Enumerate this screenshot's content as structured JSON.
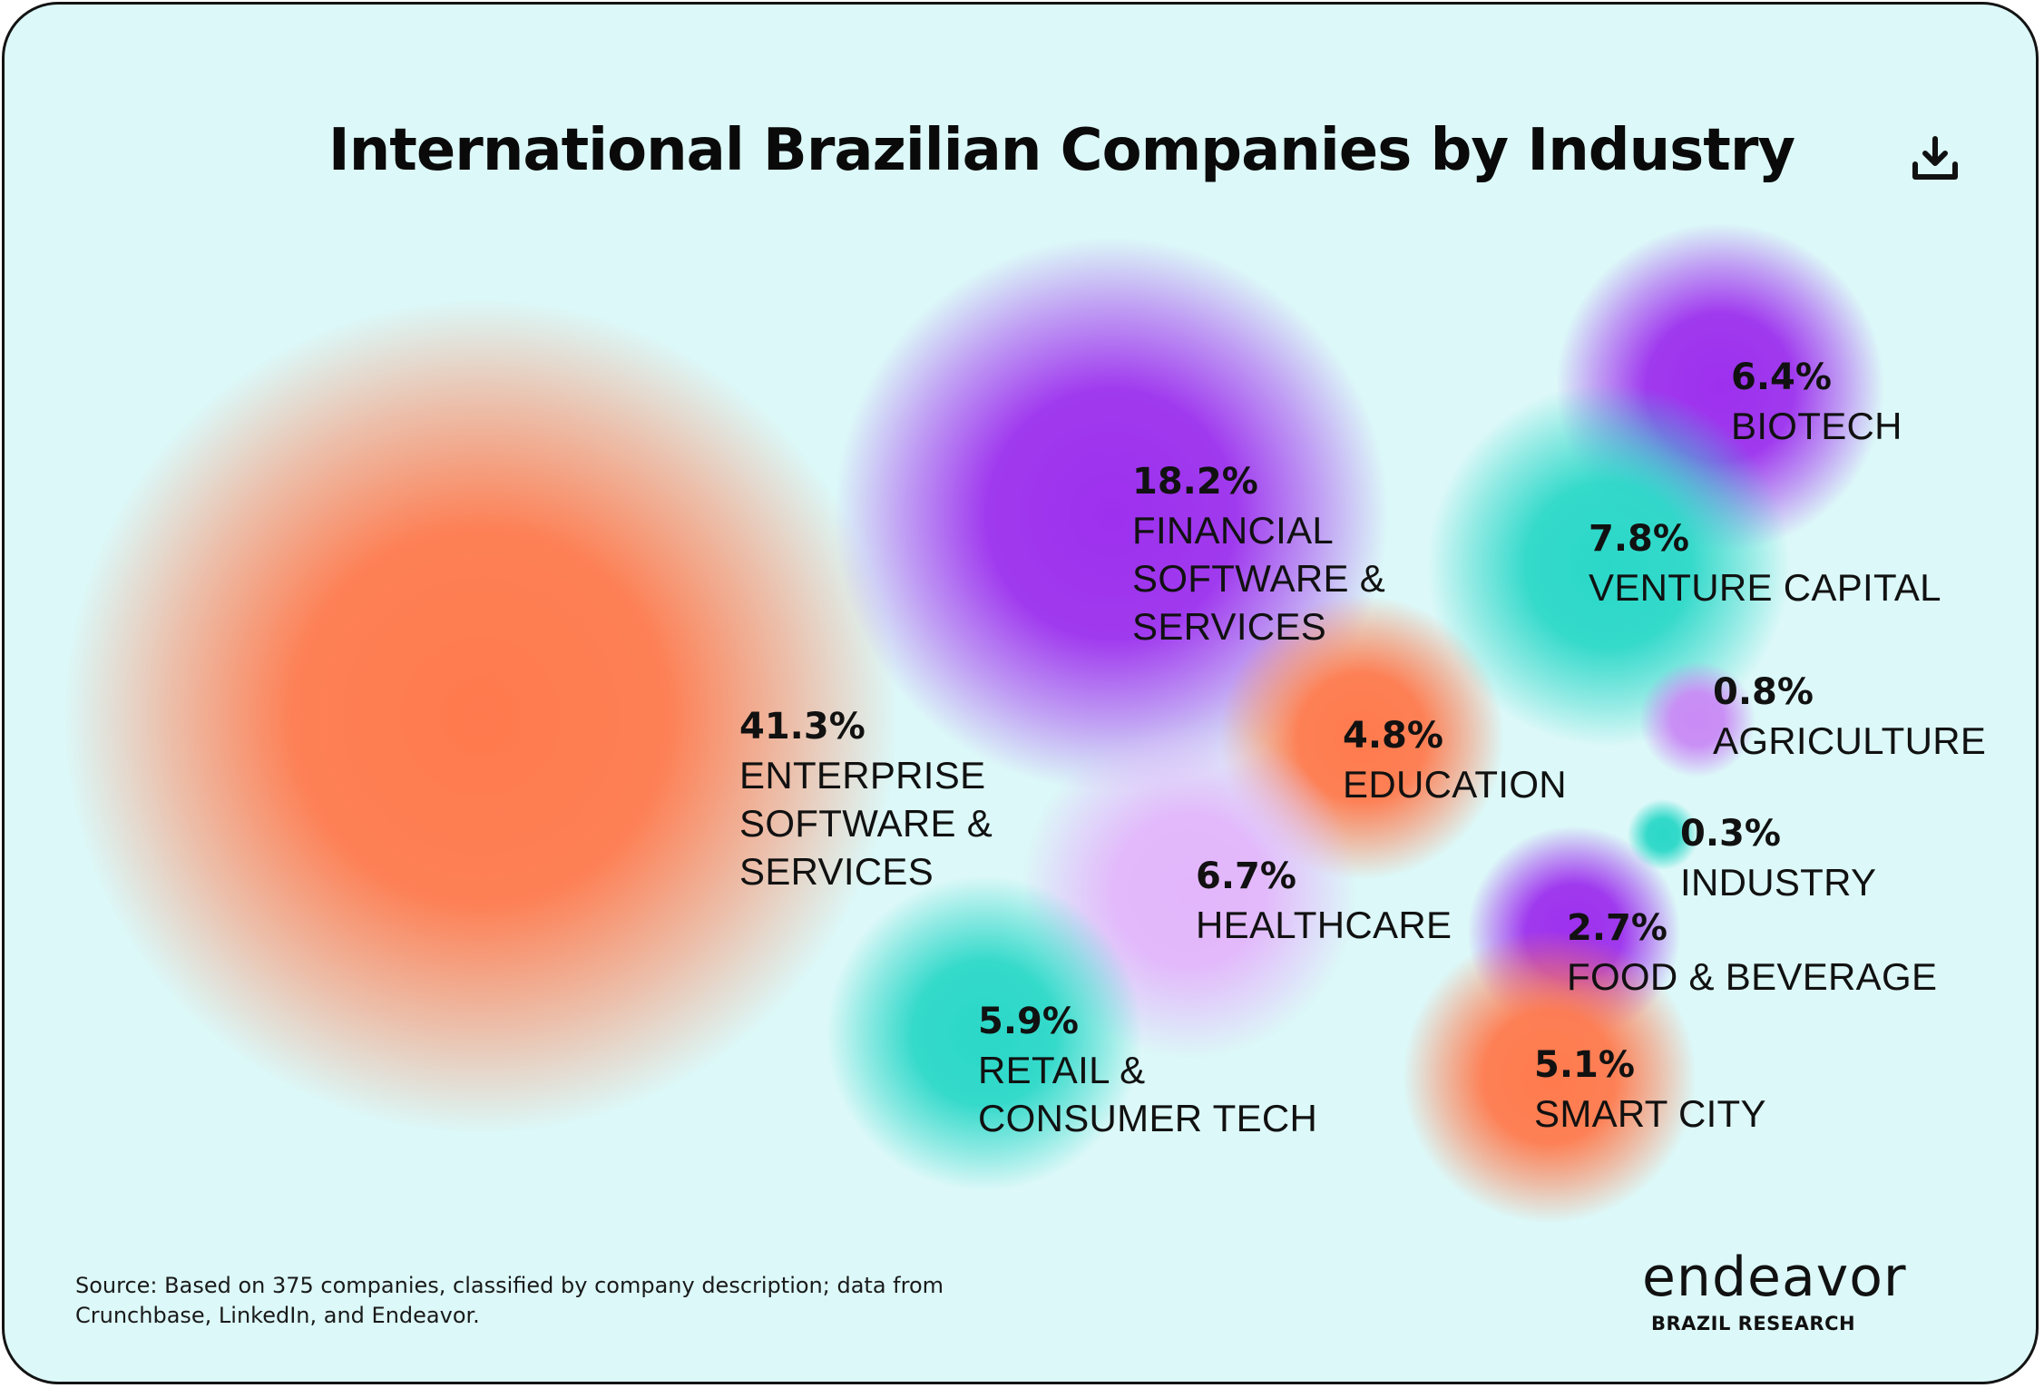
{
  "colors": {
    "background": "#dcf8f8",
    "orange": "#ff7a4d",
    "purple": "#9d30ee",
    "teal": "#2bd8c8",
    "lavender": "#e3b6fb"
  },
  "download_icon": "download-icon",
  "chart_data": {
    "type": "bubble",
    "title": "International Brazilian Companies by Industry",
    "unit": "%",
    "series": [
      {
        "label": "ENTERPRISE\nSOFTWARE &\nSERVICES",
        "value": 41.3,
        "value_text": "41.3%",
        "color": "#ff7a4d"
      },
      {
        "label": "FINANCIAL\nSOFTWARE &\nSERVICES",
        "value": 18.2,
        "value_text": "18.2%",
        "color": "#9d30ee"
      },
      {
        "label": "BIOTECH",
        "value": 6.4,
        "value_text": "6.4%",
        "color": "#9d30ee"
      },
      {
        "label": "VENTURE CAPITAL",
        "value": 7.8,
        "value_text": "7.8%",
        "color": "#2bd8c8"
      },
      {
        "label": "AGRICULTURE",
        "value": 0.8,
        "value_text": "0.8%",
        "color": "#c98af5"
      },
      {
        "label": "EDUCATION",
        "value": 4.8,
        "value_text": "4.8%",
        "color": "#ff7a4d"
      },
      {
        "label": "INDUSTRY",
        "value": 0.3,
        "value_text": "0.3%",
        "color": "#2bd8c8"
      },
      {
        "label": "HEALTHCARE",
        "value": 6.7,
        "value_text": "6.7%",
        "color": "#e3b6fb"
      },
      {
        "label": "FOOD & BEVERAGE",
        "value": 2.7,
        "value_text": "2.7%",
        "color": "#9d30ee"
      },
      {
        "label": "RETAIL &\nCONSUMER TECH",
        "value": 5.9,
        "value_text": "5.9%",
        "color": "#2bd8c8"
      },
      {
        "label": "SMART CITY",
        "value": 5.1,
        "value_text": "5.1%",
        "color": "#ff7a4d"
      }
    ]
  },
  "source": "Source: Based on 375 companies, classified by company description; data from Crunchbase, LinkedIn, and Endeavor.",
  "brand": {
    "name": "endeavor",
    "subtitle": "BRAZIL RESEARCH"
  }
}
